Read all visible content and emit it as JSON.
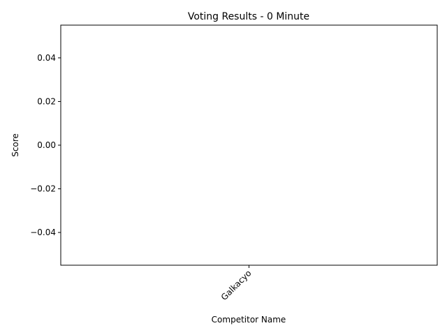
{
  "chart_data": {
    "type": "bar",
    "title": "Voting Results - 0 Minute",
    "xlabel": "Competitor Name",
    "ylabel": "Score",
    "categories": [
      "Galkacyo"
    ],
    "values": [
      0
    ],
    "ylim": [
      -0.055,
      0.055
    ],
    "yticks": [
      -0.04,
      -0.02,
      0.0,
      0.02,
      0.04
    ],
    "ytick_labels": [
      "−0.04",
      "−0.02",
      "0.00",
      "0.02",
      "0.04"
    ],
    "xtick_rotation_deg": 45,
    "grid": false,
    "legend": "none",
    "bar_color": "#1f77b4"
  }
}
